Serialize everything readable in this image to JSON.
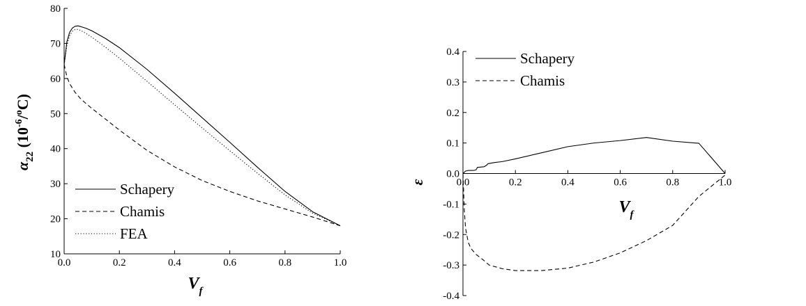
{
  "chart_data": [
    {
      "type": "line",
      "xlabel": "V_f",
      "xlabel_main": "V",
      "xlabel_sub": "f",
      "ylabel": "α22 (10^-6/ºC)",
      "ylabel_alpha": "α",
      "ylabel_sub": "22",
      "ylabel_paren_open": " (10",
      "ylabel_sup": "-6",
      "ylabel_tail": "/",
      "ylabel_sup2": "o",
      "ylabel_close": "C)",
      "xlim": [
        0,
        1
      ],
      "ylim": [
        10,
        80
      ],
      "x_ticks": [
        "0.0",
        "0.2",
        "0.4",
        "0.6",
        "0.8",
        "1.0"
      ],
      "y_ticks": [
        "10",
        "20",
        "30",
        "40",
        "50",
        "60",
        "70",
        "80"
      ],
      "legend_position": "bottom-left",
      "series": [
        {
          "name": "Schapery",
          "style": "solid",
          "x": [
            0,
            0.01,
            0.02,
            0.03,
            0.04,
            0.05,
            0.06,
            0.08,
            0.1,
            0.15,
            0.2,
            0.3,
            0.4,
            0.5,
            0.6,
            0.7,
            0.8,
            0.9,
            1.0
          ],
          "y": [
            64,
            70.5,
            73.2,
            74.4,
            74.9,
            75.0,
            74.8,
            74.3,
            73.6,
            71.4,
            68.8,
            62.6,
            55.8,
            48.8,
            41.8,
            34.7,
            27.8,
            22.0,
            18.0
          ]
        },
        {
          "name": "Chamis",
          "style": "dashed",
          "x": [
            0,
            0.01,
            0.02,
            0.04,
            0.06,
            0.08,
            0.1,
            0.15,
            0.2,
            0.3,
            0.4,
            0.5,
            0.6,
            0.7,
            0.8,
            0.9,
            1.0
          ],
          "y": [
            64,
            60.5,
            58.5,
            56.0,
            54.2,
            52.8,
            51.5,
            48.4,
            45.3,
            39.5,
            34.8,
            30.9,
            27.8,
            25.1,
            22.8,
            20.5,
            18.0
          ]
        },
        {
          "name": "FEA",
          "style": "dotted",
          "x": [
            0,
            0.01,
            0.02,
            0.03,
            0.04,
            0.05,
            0.06,
            0.08,
            0.1,
            0.15,
            0.2,
            0.3,
            0.4,
            0.5,
            0.6,
            0.7,
            0.8,
            0.9,
            1.0
          ],
          "y": [
            64,
            69.5,
            72.2,
            73.5,
            74.0,
            74.0,
            73.7,
            72.8,
            71.8,
            68.9,
            65.8,
            59.2,
            52.5,
            45.9,
            39.4,
            33.0,
            26.8,
            21.6,
            18.0
          ]
        }
      ]
    },
    {
      "type": "line",
      "xlabel": "V_f",
      "xlabel_main": "V",
      "xlabel_sub": "f",
      "ylabel": "ε",
      "xlim": [
        0,
        1
      ],
      "ylim": [
        -0.4,
        0.4
      ],
      "x_ticks": [
        "0.0",
        "0.2",
        "0.4",
        "0.6",
        "0.8",
        "1.0"
      ],
      "y_ticks": [
        "-0.4",
        "-0.3",
        "-0.2",
        "-0.1",
        "0.0",
        "0.1",
        "0.2",
        "0.3",
        "0.4"
      ],
      "legend_position": "top-left",
      "series": [
        {
          "name": "Schapery",
          "style": "solid",
          "x": [
            0,
            0.01,
            0.02,
            0.04,
            0.05,
            0.055,
            0.08,
            0.09,
            0.095,
            0.12,
            0.15,
            0.2,
            0.3,
            0.4,
            0.5,
            0.6,
            0.7,
            0.8,
            0.9,
            1.0
          ],
          "y": [
            0.0,
            0.008,
            0.01,
            0.01,
            0.012,
            0.02,
            0.022,
            0.027,
            0.032,
            0.036,
            0.039,
            0.048,
            0.068,
            0.088,
            0.1,
            0.108,
            0.118,
            0.106,
            0.099,
            0.0
          ]
        },
        {
          "name": "Chamis",
          "style": "dashed",
          "x": [
            0,
            0.005,
            0.01,
            0.02,
            0.03,
            0.05,
            0.08,
            0.1,
            0.15,
            0.2,
            0.3,
            0.4,
            0.5,
            0.6,
            0.7,
            0.8,
            0.9,
            0.95,
            1.0
          ],
          "y": [
            0.0,
            -0.12,
            -0.18,
            -0.225,
            -0.245,
            -0.265,
            -0.285,
            -0.3,
            -0.312,
            -0.318,
            -0.318,
            -0.31,
            -0.29,
            -0.26,
            -0.22,
            -0.17,
            -0.075,
            -0.04,
            -0.005
          ]
        }
      ]
    }
  ]
}
